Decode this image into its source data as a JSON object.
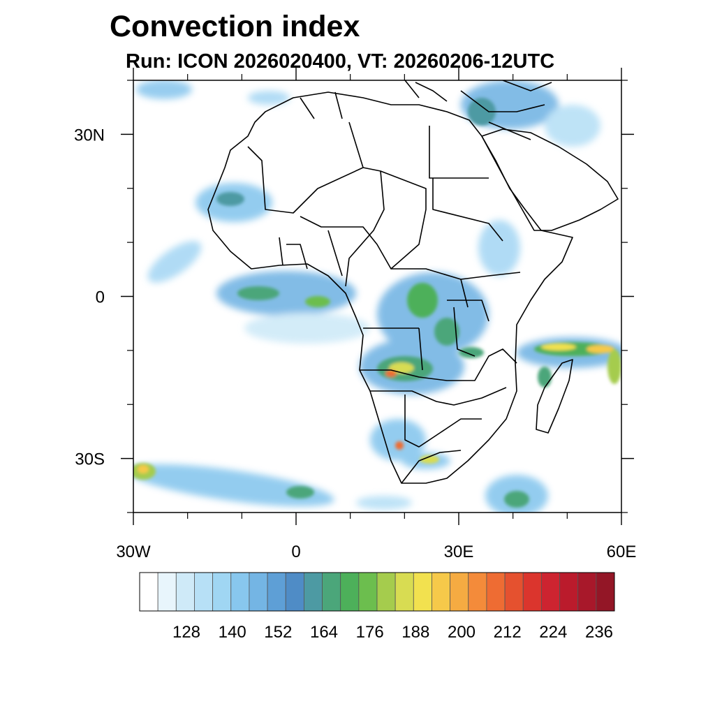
{
  "header": {
    "title": "Convection index",
    "subtitle": "Run: ICON 2026020400,  VT: 20260206-12UTC"
  },
  "map": {
    "region": "Africa",
    "lon_range": [
      -30,
      60
    ],
    "lat_range": [
      -40,
      40
    ],
    "x_ticks": [
      {
        "lon": -30,
        "label": "30W"
      },
      {
        "lon": 0,
        "label": "0"
      },
      {
        "lon": 30,
        "label": "30E"
      },
      {
        "lon": 60,
        "label": "60E"
      }
    ],
    "y_ticks": [
      {
        "lat": 30,
        "label": "30N"
      },
      {
        "lat": 0,
        "label": "0"
      },
      {
        "lat": -30,
        "label": "30S"
      }
    ],
    "minor_lon_step": 10,
    "minor_lat_step": 10
  },
  "colorbar": {
    "colors": [
      "#ffffff",
      "#e8f5fc",
      "#cfeaf8",
      "#b7e0f6",
      "#a0d6f3",
      "#88c7ee",
      "#74b5e4",
      "#5e9fd6",
      "#4f8cc6",
      "#4d9aa3",
      "#4ba67a",
      "#4db05a",
      "#6cbe4e",
      "#a5cc4d",
      "#d8dc52",
      "#f2e14f",
      "#f6c94a",
      "#f5ab42",
      "#f48b3a",
      "#ee6c33",
      "#e5512f",
      "#db352d",
      "#cd2430",
      "#bb1b2c",
      "#a8182a",
      "#931626"
    ],
    "labels": [
      "128",
      "140",
      "152",
      "164",
      "176",
      "188",
      "200",
      "212",
      "224",
      "236"
    ],
    "label_positions": [
      2,
      5,
      8,
      11,
      14,
      17,
      20,
      23,
      26,
      29
    ]
  }
}
